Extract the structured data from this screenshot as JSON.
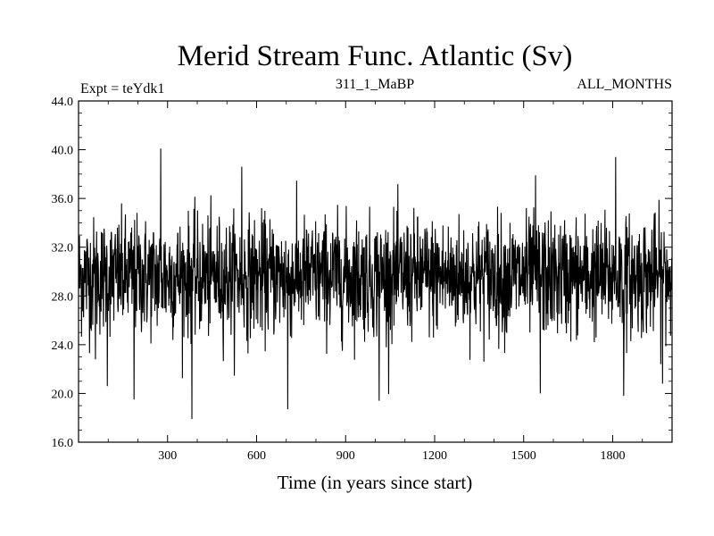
{
  "chart_data": {
    "type": "line",
    "title": "Merid Stream Func. Atlantic (Sv)",
    "left_label": "Expt = teYdk1",
    "center_label": "311_1_MaBP",
    "right_label": "ALL_MONTHS",
    "xlabel": "Time (in years since start)",
    "ylabel": "",
    "xlim": [
      0,
      2000
    ],
    "ylim": [
      16.0,
      44.0
    ],
    "x_ticks": [
      "300",
      "600",
      "900",
      "1200",
      "1500",
      "1800"
    ],
    "x_tick_values": [
      300,
      600,
      900,
      1200,
      1500,
      1800
    ],
    "y_ticks": [
      "16.0",
      "20.0",
      "24.0",
      "28.0",
      "32.0",
      "36.0",
      "40.0",
      "44.0"
    ],
    "y_tick_values": [
      16,
      20,
      24,
      28,
      32,
      36,
      40,
      44
    ],
    "grid": false,
    "line_color": "#000000",
    "series": [
      {
        "x_start": 0,
        "x_step": 1,
        "n_points": 2000,
        "mean": 29.6,
        "spread": 2.4,
        "y_min": 17.9,
        "y_max": 40.1,
        "extremes": [
          {
            "x": 57,
            "y": 22.8
          },
          {
            "x": 97,
            "y": 20.6
          },
          {
            "x": 187,
            "y": 19.5
          },
          {
            "x": 277,
            "y": 40.1
          },
          {
            "x": 382,
            "y": 17.9
          },
          {
            "x": 550,
            "y": 38.6
          },
          {
            "x": 705,
            "y": 18.7
          },
          {
            "x": 1013,
            "y": 19.4
          },
          {
            "x": 1540,
            "y": 37.9
          },
          {
            "x": 1556,
            "y": 20.0
          },
          {
            "x": 1810,
            "y": 39.4
          },
          {
            "x": 1837,
            "y": 19.8
          },
          {
            "x": 1968,
            "y": 20.8
          }
        ]
      }
    ]
  }
}
